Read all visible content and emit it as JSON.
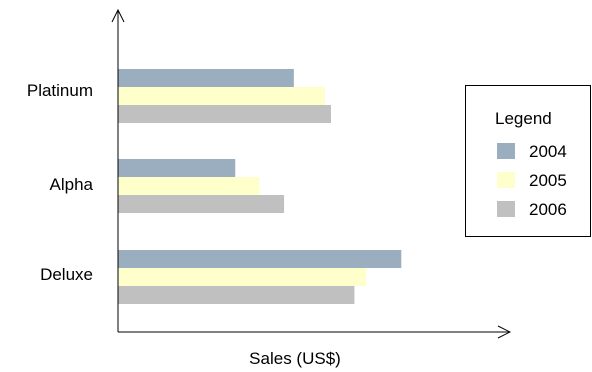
{
  "chart_data": {
    "type": "bar",
    "orientation": "horizontal",
    "categories": [
      "Platinum",
      "Alpha",
      "Deluxe"
    ],
    "series": [
      {
        "name": "2004",
        "color": "#9AAEBF",
        "values": [
          180,
          120,
          290
        ]
      },
      {
        "name": "2005",
        "color": "#FFFFCC",
        "values": [
          212,
          145,
          254
        ]
      },
      {
        "name": "2006",
        "color": "#C0C0C0",
        "values": [
          218,
          170,
          242
        ]
      }
    ],
    "xlabel": "Sales (US$)",
    "ylabel": "",
    "xlim": [
      0,
      390
    ],
    "x_ticks_shown": false,
    "grid": false,
    "legend": {
      "title": "Legend",
      "placement": "right"
    }
  }
}
